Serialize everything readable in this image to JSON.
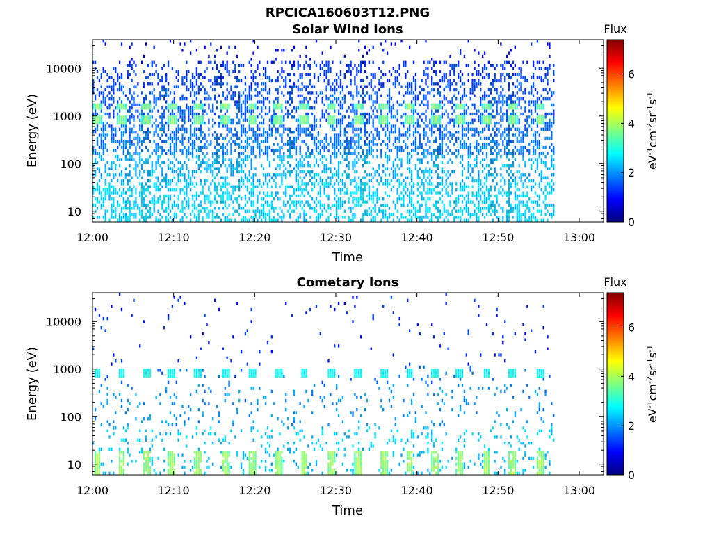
{
  "figure": {
    "title": "RPCICA160603T12.PNG",
    "colormap_stops": [
      "#00007f",
      "#0000ff",
      "#007fff",
      "#00ffff",
      "#7fff7f",
      "#ffff00",
      "#ff7f00",
      "#ff0000",
      "#7f0000"
    ]
  },
  "chart_data": [
    {
      "type": "heatmap",
      "title": "Solar Wind Ions",
      "xlabel": "Time",
      "ylabel": "Energy (eV)",
      "x_ticks": [
        "12:00",
        "12:10",
        "12:20",
        "12:30",
        "12:40",
        "12:50",
        "13:00"
      ],
      "xlim_minutes_after_1200": [
        0,
        63
      ],
      "data_extent_minutes_after_1200": [
        0,
        57
      ],
      "y_scale": "log",
      "ylim": [
        6,
        40000
      ],
      "y_ticks": [
        "10",
        "100",
        "1000",
        "10000"
      ],
      "colorbar": {
        "label": "Flux",
        "units": "eV-1cm-2sr-1s-1",
        "range": [
          0,
          7.4
        ],
        "ticks": [
          "0",
          "2",
          "4",
          "6"
        ]
      },
      "description_features": {
        "recurring_peaks_minutes": [
          0.5,
          3.5,
          6.6,
          9.7,
          12.9,
          16.3,
          19.6,
          22.8,
          26.0,
          29.4,
          32.7,
          35.8,
          39.0,
          42.2,
          45.2,
          48.5,
          51.7,
          55.1
        ],
        "peak_energy_eV": [
          800,
          1600
        ],
        "peak_flux_level": 3.8,
        "background_flux_low_energy": 2.4,
        "background_flux_high_energy": 1.3
      }
    },
    {
      "type": "heatmap",
      "title": "Cometary Ions",
      "xlabel": "Time",
      "ylabel": "Energy (eV)",
      "x_ticks": [
        "12:00",
        "12:10",
        "12:20",
        "12:30",
        "12:40",
        "12:50",
        "13:00"
      ],
      "xlim_minutes_after_1200": [
        0,
        63
      ],
      "data_extent_minutes_after_1200": [
        0,
        57
      ],
      "y_scale": "log",
      "ylim": [
        6,
        40000
      ],
      "y_ticks": [
        "10",
        "100",
        "1000",
        "10000"
      ],
      "colorbar": {
        "label": "Flux",
        "units": "eV-1cm-2sr-1s-1",
        "range": [
          0,
          7.4
        ],
        "ticks": [
          "0",
          "2",
          "4",
          "6"
        ]
      },
      "description_features": {
        "recurring_peaks_minutes": [
          0.5,
          3.5,
          6.6,
          9.7,
          12.9,
          16.3,
          19.6,
          22.8,
          26.0,
          29.4,
          32.7,
          35.8,
          39.0,
          42.2,
          45.2,
          48.5,
          51.7,
          55.1
        ],
        "peak_energy_eV": [
          800
        ],
        "low_energy_bursts_eV": [
          8,
          16
        ],
        "low_energy_burst_flux": 4.0,
        "peak_flux_level": 2.8
      }
    }
  ]
}
